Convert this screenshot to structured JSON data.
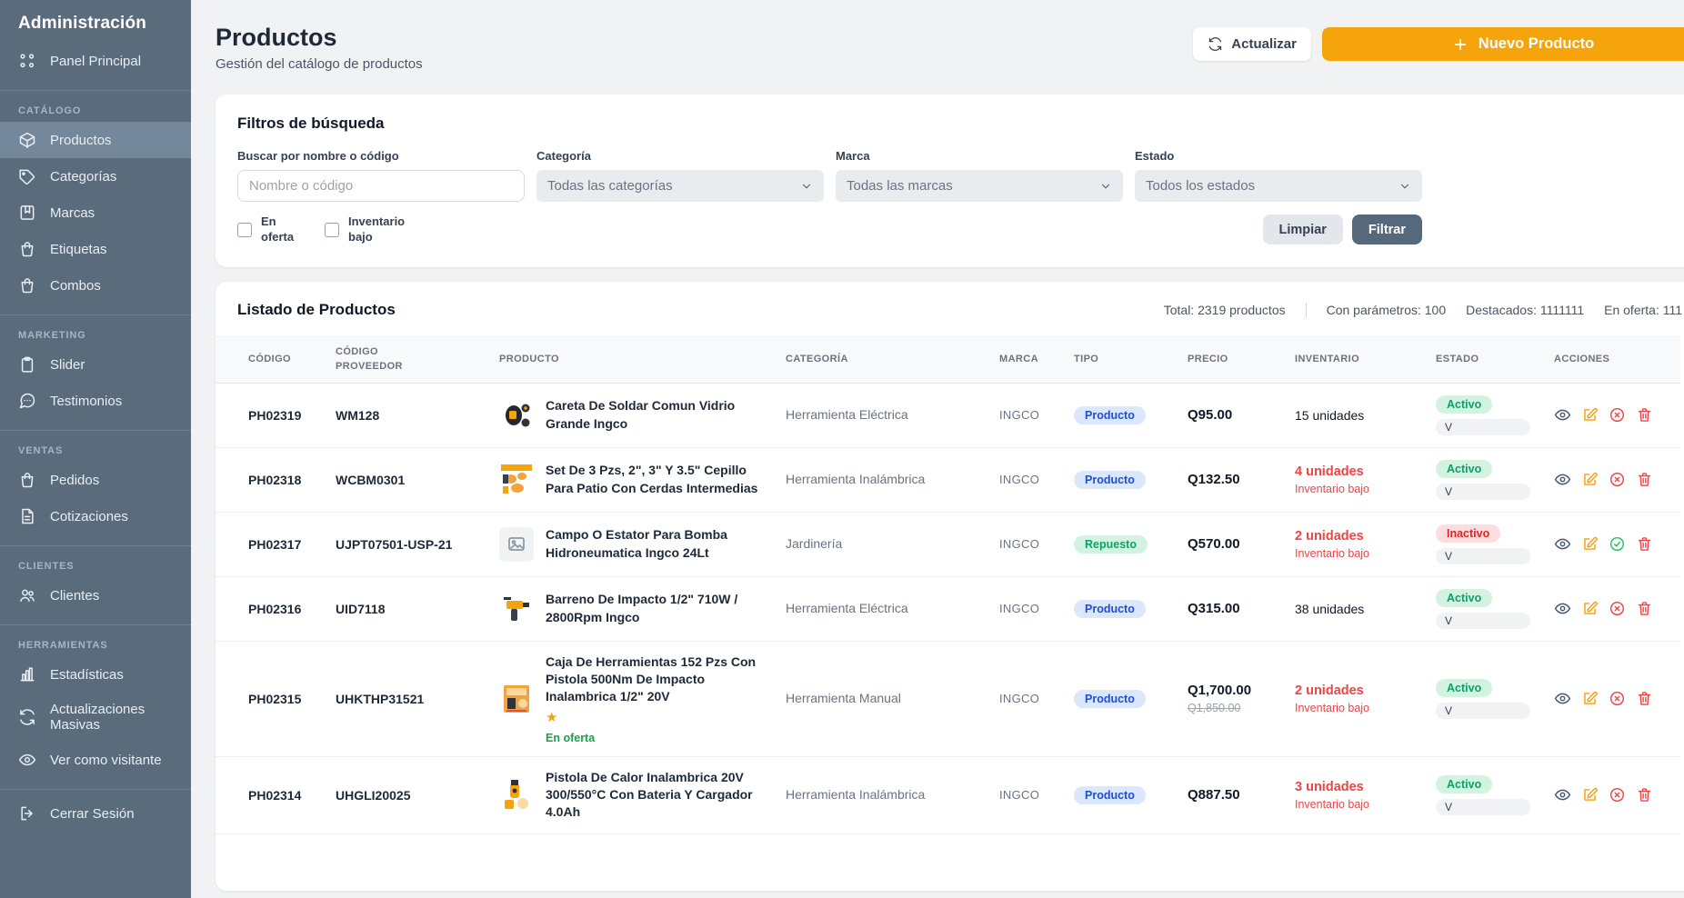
{
  "sidebar": {
    "title": "Administración",
    "sections": [
      {
        "label": null,
        "items": [
          {
            "id": "panel-principal",
            "label": "Panel Principal",
            "icon": "dashboard",
            "active": false
          }
        ]
      },
      {
        "label": "CATÁLOGO",
        "items": [
          {
            "id": "productos",
            "label": "Productos",
            "icon": "box",
            "active": true
          },
          {
            "id": "categorias",
            "label": "Categorías",
            "icon": "tag",
            "active": false
          },
          {
            "id": "marcas",
            "label": "Marcas",
            "icon": "bookmark",
            "active": false
          },
          {
            "id": "etiquetas",
            "label": "Etiquetas",
            "icon": "bag",
            "active": false
          },
          {
            "id": "combos",
            "label": "Combos",
            "icon": "bag",
            "active": false
          }
        ]
      },
      {
        "label": "MARKETING",
        "items": [
          {
            "id": "slider",
            "label": "Slider",
            "icon": "clipboard",
            "active": false
          },
          {
            "id": "testimonios",
            "label": "Testimonios",
            "icon": "chat",
            "active": false
          }
        ]
      },
      {
        "label": "VENTAS",
        "items": [
          {
            "id": "pedidos",
            "label": "Pedidos",
            "icon": "bag",
            "active": false
          },
          {
            "id": "cotizaciones",
            "label": "Cotizaciones",
            "icon": "document",
            "active": false
          }
        ]
      },
      {
        "label": "CLIENTES",
        "items": [
          {
            "id": "clientes",
            "label": "Clientes",
            "icon": "users",
            "active": false
          }
        ]
      },
      {
        "label": "HERRAMIENTAS",
        "items": [
          {
            "id": "estadisticas",
            "label": "Estadísticas",
            "icon": "chart",
            "active": false
          },
          {
            "id": "actualizaciones-masivas",
            "label": "Actualizaciones Masivas",
            "icon": "refresh",
            "active": false
          },
          {
            "id": "ver-como-visitante",
            "label": "Ver como visitante",
            "icon": "eye",
            "active": false
          }
        ]
      },
      {
        "label": null,
        "items": [
          {
            "id": "cerrar-sesion",
            "label": "Cerrar Sesión",
            "icon": "logout",
            "active": false
          }
        ]
      }
    ]
  },
  "header": {
    "title": "Productos",
    "subtitle": "Gestión del catálogo de productos",
    "refresh_label": "Actualizar",
    "new_product_label": "Nuevo Producto"
  },
  "filters": {
    "title": "Filtros de búsqueda",
    "search": {
      "label": "Buscar por nombre o código",
      "placeholder": "Nombre o código"
    },
    "category": {
      "label": "Categoría",
      "value": "Todas las categorías"
    },
    "brand": {
      "label": "Marca",
      "value": "Todas las marcas"
    },
    "status": {
      "label": "Estado",
      "value": "Todos los estados"
    },
    "checkboxes": [
      "En oferta",
      "Inventario bajo"
    ],
    "clear_label": "Limpiar",
    "apply_label": "Filtrar"
  },
  "list": {
    "title": "Listado de Productos",
    "stats": [
      "Total: 2319 productos",
      "Con parámetros: 100",
      "Destacados: 1111111",
      "En oferta: 111"
    ]
  },
  "table": {
    "columns": [
      "CÓDIGO",
      "CÓDIGO PROVEEDOR",
      "PRODUCTO",
      "CATEGORÍA",
      "MARCA",
      "TIPO",
      "PRECIO",
      "INVENTARIO",
      "ESTADO",
      "ACCIONES"
    ],
    "low_stock_note": "Inventario bajo",
    "offer_label": "En oferta",
    "rows": [
      {
        "codigo": "PH02319",
        "proveedor": "WM128",
        "nombre": "Careta De Soldar Comun Vidrio Grande Ingco",
        "image": "welding-mask",
        "categoria": "Herramienta Eléctrica",
        "marca": "INGCO",
        "tipo": "Producto",
        "tipo_style": "blue",
        "precio": "Q95.00",
        "precio_old": null,
        "inventario": "15 unidades",
        "inventario_bajo": false,
        "estado": "Activo",
        "estado_style": "green",
        "estado_sub": "V",
        "destacado": false,
        "en_oferta": false,
        "toggle": "deactivate"
      },
      {
        "codigo": "PH02318",
        "proveedor": "WCBM0301",
        "nombre": "Set De 3 Pzs, 2\", 3\" Y 3.5\" Cepillo Para Patio Con Cerdas Intermedias",
        "image": "brush-set",
        "categoria": "Herramienta Inalámbrica",
        "marca": "INGCO",
        "tipo": "Producto",
        "tipo_style": "blue",
        "precio": "Q132.50",
        "precio_old": null,
        "inventario": "4 unidades",
        "inventario_bajo": true,
        "estado": "Activo",
        "estado_style": "green",
        "estado_sub": "V",
        "destacado": false,
        "en_oferta": false,
        "toggle": "deactivate"
      },
      {
        "codigo": "PH02317",
        "proveedor": "UJPT07501-USP-21",
        "nombre": "Campo O Estator Para Bomba Hidroneumatica Ingco 24Lt",
        "image": "placeholder",
        "categoria": "Jardinería",
        "marca": "INGCO",
        "tipo": "Repuesto",
        "tipo_style": "green",
        "precio": "Q570.00",
        "precio_old": null,
        "inventario": "2 unidades",
        "inventario_bajo": true,
        "estado": "Inactivo",
        "estado_style": "red",
        "estado_sub": "V",
        "destacado": false,
        "en_oferta": false,
        "toggle": "activate"
      },
      {
        "codigo": "PH02316",
        "proveedor": "UID7118",
        "nombre": "Barreno De Impacto 1/2\" 710W / 2800Rpm Ingco",
        "image": "drill",
        "categoria": "Herramienta Eléctrica",
        "marca": "INGCO",
        "tipo": "Producto",
        "tipo_style": "blue",
        "precio": "Q315.00",
        "precio_old": null,
        "inventario": "38 unidades",
        "inventario_bajo": false,
        "estado": "Activo",
        "estado_style": "green",
        "estado_sub": "V",
        "destacado": false,
        "en_oferta": false,
        "toggle": "deactivate"
      },
      {
        "codigo": "PH02315",
        "proveedor": "UHKTHP31521",
        "nombre": "Caja De Herramientas 152 Pzs Con Pistola 500Nm De Impacto Inalambrica 1/2\" 20V",
        "image": "toolbox",
        "categoria": "Herramienta Manual",
        "marca": "INGCO",
        "tipo": "Producto",
        "tipo_style": "blue",
        "precio": "Q1,700.00",
        "precio_old": "Q1,850.00",
        "inventario": "2 unidades",
        "inventario_bajo": true,
        "estado": "Activo",
        "estado_style": "green",
        "estado_sub": "V",
        "destacado": true,
        "en_oferta": true,
        "toggle": "deactivate"
      },
      {
        "codigo": "PH02314",
        "proveedor": "UHGLI20025",
        "nombre": "Pistola De Calor Inalambrica 20V 300/550°C Con Bateria Y Cargador 4.0Ah",
        "image": "heat-gun",
        "categoria": "Herramienta Inalámbrica",
        "marca": "INGCO",
        "tipo": "Producto",
        "tipo_style": "blue",
        "precio": "Q887.50",
        "precio_old": null,
        "inventario": "3 unidades",
        "inventario_bajo": true,
        "estado": "Activo",
        "estado_style": "green",
        "estado_sub": "V",
        "destacado": false,
        "en_oferta": false,
        "toggle": "deactivate"
      }
    ]
  }
}
